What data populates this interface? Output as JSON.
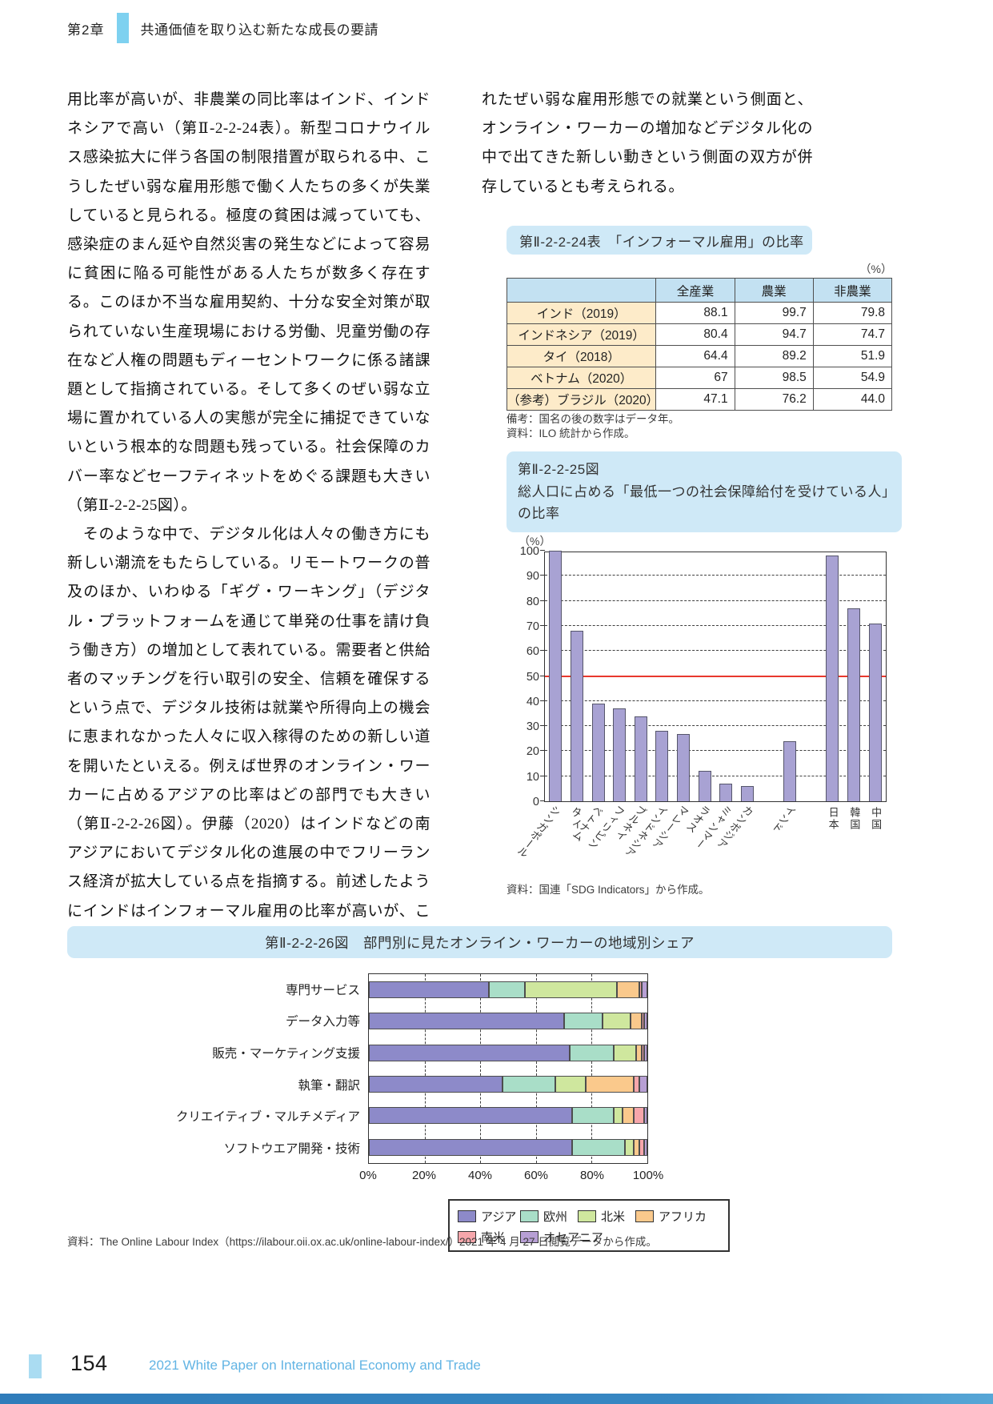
{
  "page": {
    "chapter_label": "第2章",
    "chapter_title": "共通価値を取り込む新たな成長の要請",
    "page_number": "154",
    "footer_text": "2021 White Paper on International Economy and Trade"
  },
  "left_column": {
    "para1": "用比率が高いが、非農業の同比率はインド、インドネシアで高い（第Ⅱ-2-2-24表）。新型コロナウイルス感染拡大に伴う各国の制限措置が取られる中、こうしたぜい弱な雇用形態で働く人たちの多くが失業していると見られる。極度の貧困は減っていても、感染症のまん延や自然災害の発生などによって容易に貧困に陥る可能性がある人たちが数多く存在する。このほか不当な雇用契約、十分な安全対策が取られていない生産現場における労働、児童労働の存在など人権の問題もディーセントワークに係る諸課題として指摘されている。そして多くのぜい弱な立場に置かれている人の実態が完全に捕捉できていないという根本的な問題も残っている。社会保障のカバー率などセーフティネットをめぐる課題も大きい（第Ⅱ-2-2-25図）。",
    "para2": "　そのような中で、デジタル化は人々の働き方にも新しい潮流をもたらしている。リモートワークの普及のほか、いわゆる「ギグ・ワーキング」（デジタル・プラットフォームを通じて単発の仕事を請け負う働き方）の増加として表れている。需要者と供給者のマッチングを行い取引の安全、信頼を確保するという点で、デジタル技術は就業や所得向上の機会に恵まれなかった人々に収入稼得のための新しい道を開いたといえる。例えば世界のオンライン・ワーカーに占めるアジアの比率はどの部門でも大きい（第Ⅱ-2-2-26図）。伊藤（2020）はインドなどの南アジアにおいてデジタル化の進展の中でフリーランス経済が拡大している点を指摘する。前述したようにインドはインフォーマル雇用の比率が高いが、ここには家族従業者や従来から見ら"
  },
  "right_column": {
    "para1": "れたぜい弱な雇用形態での就業という側面と、オンライン・ワーカーの増加などデジタル化の中で出てきた新しい動きという側面の双方が併存しているとも考えられる。"
  },
  "table24": {
    "badge_title": "第Ⅱ-2-2-24表　「インフォーマル雇用」の比率",
    "unit": "（%）",
    "note1": "備考：国名の後の数字はデータ年。",
    "note2": "資料：ILO 統計から作成。"
  },
  "chart25": {
    "badge_label": "第Ⅱ-2-2-25図",
    "badge_title": "総人口に占める「最低一つの社会保障給付を受けている人」の比率",
    "unit": "（%）",
    "source": "資料：国連「SDG Indicators」から作成。",
    "gap_after_indices": [
      9,
      10
    ]
  },
  "chart26": {
    "badge_title": "第Ⅱ-2-2-26図　部門別に見たオンライン・ワーカーの地域別シェア",
    "source": "資料：The Online Labour Index（https://ilabour.oii.ox.ac.uk/online-labour-index/）2021 年 4 月 27 日閲覧データから作成。"
  },
  "colors": {
    "badge_blue": "#cfe9f7",
    "chapter_bar_blue": "#7ed1f0",
    "table_header_blue": "#c3e1f2",
    "table_label_cream": "#fdebc9",
    "bar_purple": "#a8a2d3",
    "ref_line_red": "#e8382d",
    "footer_blue": "#62b4e4"
  },
  "chart_data": [
    {
      "type": "table",
      "title": "第Ⅱ-2-2-24表 「インフォーマル雇用」の比率",
      "unit": "%",
      "columns": [
        "",
        "全産業",
        "農業",
        "非農業"
      ],
      "rows": [
        [
          "インド（2019）",
          "88.1",
          "99.7",
          "79.8"
        ],
        [
          "インドネシア（2019）",
          "80.4",
          "94.7",
          "74.7"
        ],
        [
          "タイ（2018）",
          "64.4",
          "89.2",
          "51.9"
        ],
        [
          "ベトナム（2020）",
          "67",
          "98.5",
          "54.9"
        ],
        [
          "（参考）ブラジル（2020）",
          "47.1",
          "76.2",
          "44.0"
        ]
      ]
    },
    {
      "type": "bar",
      "title": "第Ⅱ-2-2-25図 総人口に占める「最低一つの社会保障給付を受けている人」の比率",
      "ylabel": "（%）",
      "ylim": [
        0,
        100
      ],
      "y_tick_step": 10,
      "grid": "dashed-horizontal",
      "reference_line": 50,
      "categories": [
        "シンガポール",
        "タイ",
        "ベトナム",
        "フィリピン",
        "ブルネイ",
        "インドネシア",
        "マレーシア",
        "ラオス",
        "ミャンマー",
        "カンボジア",
        "インド",
        "日本",
        "韓国",
        "中国"
      ],
      "values": [
        100,
        68,
        39,
        37,
        34,
        28,
        27,
        12,
        7,
        6,
        24,
        98,
        77,
        71
      ]
    },
    {
      "type": "bar",
      "subtype": "horizontal-stacked",
      "title": "第Ⅱ-2-2-26図 部門別に見たオンライン・ワーカーの地域別シェア",
      "xlim": [
        0,
        100
      ],
      "x_tick_step": 20,
      "x_tick_suffix": "%",
      "grid": "dashed-vertical",
      "legend_position": "bottom",
      "categories": [
        "専門サービス",
        "データ入力等",
        "販売・マーケティング支援",
        "執筆・翻訳",
        "クリエイティブ・マルチメディア",
        "ソフトウエア開発・技術"
      ],
      "series": [
        {
          "name": "アジア",
          "color": "#8d8ac9",
          "values": [
            43,
            70,
            72,
            48,
            73,
            73
          ]
        },
        {
          "name": "欧州",
          "color": "#a9dec8",
          "values": [
            13,
            14,
            16,
            19,
            15,
            19
          ]
        },
        {
          "name": "北米",
          "color": "#cfe79e",
          "values": [
            33,
            10,
            8,
            11,
            3,
            3
          ]
        },
        {
          "name": "アフリカ",
          "color": "#fac98c",
          "values": [
            8,
            4,
            2,
            17,
            4,
            2
          ]
        },
        {
          "name": "南米",
          "color": "#f6a6ab",
          "values": [
            1,
            1,
            1,
            2,
            4,
            2
          ]
        },
        {
          "name": "オセアニア",
          "color": "#b79fd4",
          "values": [
            2,
            1,
            1,
            3,
            1,
            1
          ]
        }
      ]
    }
  ]
}
